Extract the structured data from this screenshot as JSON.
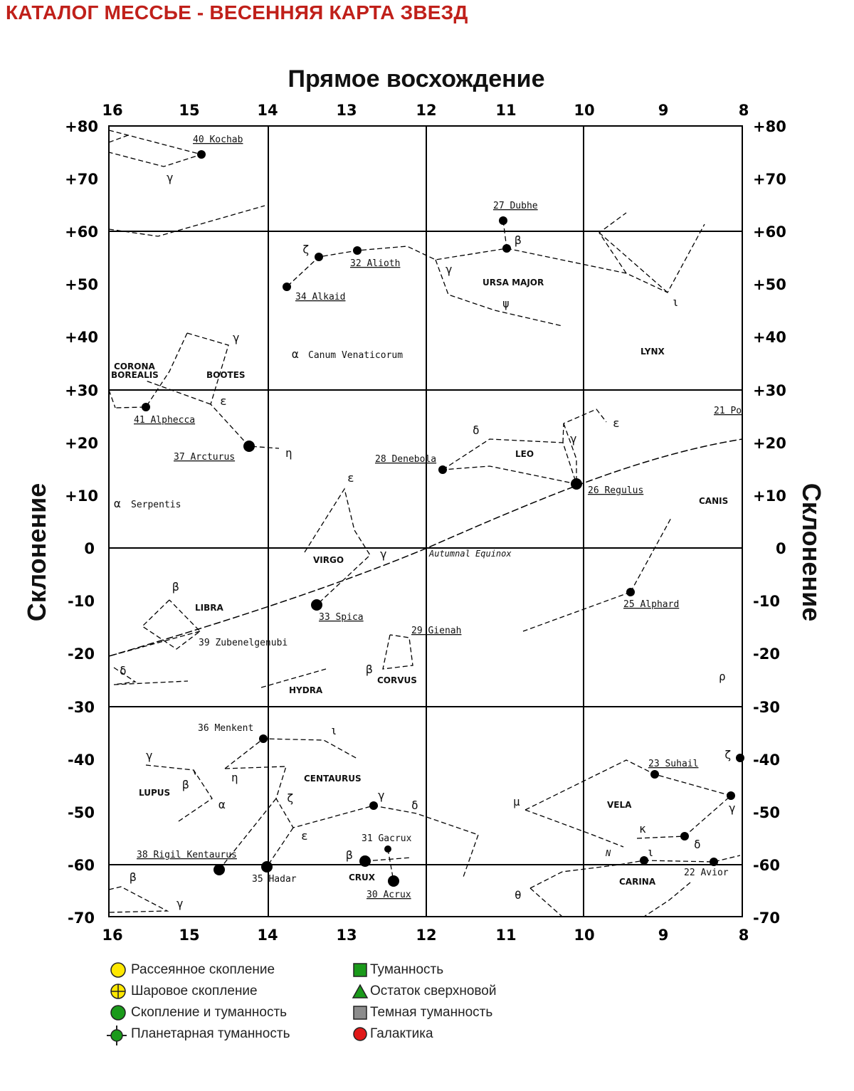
{
  "page": {
    "title": "КАТАЛОГ МЕССЬЕ - ВЕСЕННЯЯ КАРТА ЗВЕЗД",
    "ra_title": "Прямое восхождение",
    "dec_title": "Склонение"
  },
  "axes": {
    "ra_ticks": [
      "16",
      "15",
      "14",
      "13",
      "12",
      "11",
      "10",
      "9",
      "8"
    ],
    "dec_ticks": [
      "+80",
      "+70",
      "+60",
      "+50",
      "+40",
      "+30",
      "+20",
      "+10",
      "0",
      "-10",
      "-20",
      "-30",
      "-40",
      "-50",
      "-60",
      "-70"
    ]
  },
  "labels": {
    "kochab": "40 Kochab",
    "dubhe": "27 Dubhe",
    "alioth": "32 Alioth",
    "alkaid": "34 Alkaid",
    "ursa_major": "URSA MAJOR",
    "canum": "Canum Venaticorum",
    "lynx": "LYNX",
    "corona": "CORONA",
    "borealis": "BOREALIS",
    "bootes": "BOOTES",
    "alphecca": "41 Alphecca",
    "arcturus": "37 Arcturus",
    "denebola": "28 Denebola",
    "leo": "LEO",
    "regulus": "26 Regulus",
    "canis": "CANIS",
    "twentyone": "21 Po",
    "serpentis": "Serpentis",
    "virgo": "VIRGO",
    "equinox": "Autumnal Equinox",
    "libra": "LIBRA",
    "spica": "33 Spica",
    "gienah": "29 Gienah",
    "alphard": "25 Alphard",
    "zubenelgenubi": "39 Zubenelgenubi",
    "corvus": "CORVUS",
    "hydra": "HYDRA",
    "menkent": "36 Menkent",
    "suhail": "23 Suhail",
    "lupus": "LUPUS",
    "centaurus": "CENTAURUS",
    "vela": "VELA",
    "gacrux": "31 Gacrux",
    "rigil": "38 Rigil Kentaurus",
    "hadar": "35 Hadar",
    "crux": "CRUX",
    "acrux": "30 Acrux",
    "carina": "CARINA",
    "avior": "22 Avior"
  },
  "greek": {
    "gamma": "γ",
    "beta": "β",
    "zeta": "ζ",
    "alpha": "α",
    "epsilon": "ε",
    "eta": "η",
    "delta": "δ",
    "psi": "ψ",
    "iota": "ι",
    "mu": "μ",
    "kappa": "κ",
    "theta": "θ",
    "rho": "ρ",
    "nu": "N"
  },
  "legend": {
    "left": [
      {
        "label": "Рассеянное скопление",
        "symbol": "open-cluster-icon",
        "color": "#ffe800"
      },
      {
        "label": "Шаровое скопление",
        "symbol": "globular-cluster-icon",
        "color": "#ffe800"
      },
      {
        "label": "Скопление и туманность",
        "symbol": "cluster-nebula-icon",
        "color": "#1a9a1a"
      },
      {
        "label": "Планетарная туманность",
        "symbol": "planetary-nebula-icon",
        "color": "#1a9a1a"
      }
    ],
    "right": [
      {
        "label": "Туманность",
        "symbol": "nebula-icon",
        "color": "#1a9a1a"
      },
      {
        "label": "Остаток сверхновой",
        "symbol": "supernova-remnant-icon",
        "color": "#1a9a1a"
      },
      {
        "label": "Темная туманность",
        "symbol": "dark-nebula-icon",
        "color": "#8c8c8c"
      },
      {
        "label": "Галактика",
        "symbol": "galaxy-icon",
        "color": "#e01818"
      }
    ]
  }
}
